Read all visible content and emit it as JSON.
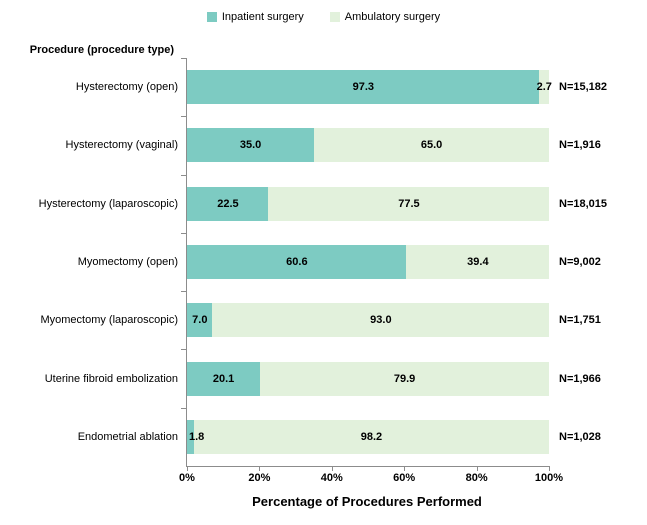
{
  "chart_data": {
    "type": "bar",
    "orientation": "horizontal",
    "stacked": true,
    "title": "",
    "xlabel": "Percentage of Procedures Performed",
    "ylabel": "Procedure (procedure type)",
    "xlim": [
      0,
      100
    ],
    "grid": false,
    "legend_position": "top-center",
    "categories": [
      "Hysterectomy (open)",
      "Hysterectomy (vaginal)",
      "Hysterectomy (laparoscopic)",
      "Myomectomy (open)",
      "Myomectomy (laparoscopic)",
      "Uterine fibroid embolization",
      "Endometrial ablation"
    ],
    "series": [
      {
        "name": "Inpatient surgery",
        "color": "#7dcbc2",
        "values": [
          97.3,
          35.0,
          22.5,
          60.6,
          7.0,
          20.1,
          1.8
        ]
      },
      {
        "name": "Ambulatory surgery",
        "color": "#e2f1dc",
        "values": [
          2.7,
          65.0,
          77.5,
          39.4,
          93.0,
          79.9,
          98.2
        ]
      }
    ],
    "n_labels": [
      "N=15,182",
      "N=1,916",
      "N=18,015",
      "N=9,002",
      "N=1,751",
      "N=1,966",
      "N=1,028"
    ],
    "x_ticks": [
      "0%",
      "20%",
      "40%",
      "60%",
      "80%",
      "100%"
    ],
    "x_tick_values": [
      0,
      20,
      40,
      60,
      80,
      100
    ],
    "axis_color": "#8c8c8c",
    "label_color": "#000000"
  }
}
